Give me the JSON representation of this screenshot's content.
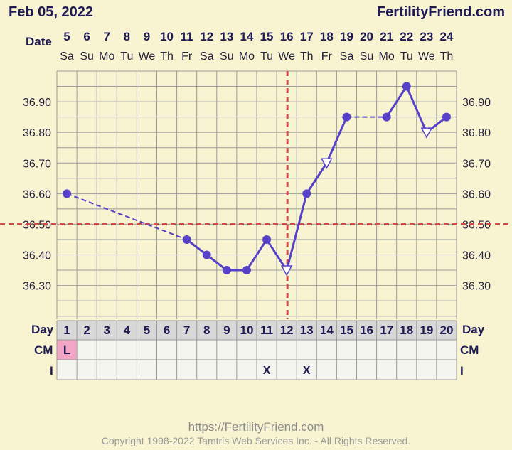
{
  "header": {
    "date_title": "Feb 05, 2022",
    "site": "FertilityFriend.com"
  },
  "footer": {
    "url": "https://FertilityFriend.com",
    "copyright": "Copyright 1998-2022 Tamtris Web Services Inc. - All Rights Reserved."
  },
  "colors": {
    "background": "#f8f4d2",
    "grid": "#9a9a9a",
    "temp_line": "#5641c8",
    "coverline": "#d04848",
    "lower_panel": "#f5f5f0",
    "day_header_row": "#d8d8d8",
    "menstruation_cell": "#f3a6c6"
  },
  "chart_data": {
    "type": "line",
    "title": "",
    "row_labels": {
      "date": "Date",
      "day": "Day",
      "cm": "CM",
      "intercourse": "I"
    },
    "cycle_days": [
      1,
      2,
      3,
      4,
      5,
      6,
      7,
      8,
      9,
      10,
      11,
      12,
      13,
      14,
      15,
      16,
      17,
      18,
      19,
      20
    ],
    "dates": [
      "5",
      "6",
      "7",
      "8",
      "9",
      "10",
      "11",
      "12",
      "13",
      "14",
      "15",
      "16",
      "17",
      "18",
      "19",
      "20",
      "21",
      "22",
      "23",
      "24"
    ],
    "weekdays": [
      "Sa",
      "Su",
      "Mo",
      "Tu",
      "We",
      "Th",
      "Fr",
      "Sa",
      "Su",
      "Mo",
      "Tu",
      "We",
      "Th",
      "Fr",
      "Sa",
      "Su",
      "Mo",
      "Tu",
      "We",
      "Th"
    ],
    "y_ticks": [
      "36.30",
      "36.40",
      "36.50",
      "36.60",
      "36.70",
      "36.80",
      "36.90"
    ],
    "ylim": [
      36.19,
      37.0
    ],
    "temperatures": [
      {
        "day": 1,
        "temp": 36.6,
        "marker": "dot"
      },
      {
        "day": 7,
        "temp": 36.45,
        "marker": "dot"
      },
      {
        "day": 8,
        "temp": 36.4,
        "marker": "dot"
      },
      {
        "day": 9,
        "temp": 36.35,
        "marker": "dot"
      },
      {
        "day": 10,
        "temp": 36.35,
        "marker": "dot"
      },
      {
        "day": 11,
        "temp": 36.45,
        "marker": "dot"
      },
      {
        "day": 12,
        "temp": 36.35,
        "marker": "open-triangle"
      },
      {
        "day": 13,
        "temp": 36.6,
        "marker": "dot"
      },
      {
        "day": 14,
        "temp": 36.7,
        "marker": "open-triangle"
      },
      {
        "day": 15,
        "temp": 36.85,
        "marker": "dot"
      },
      {
        "day": 17,
        "temp": 36.85,
        "marker": "dot"
      },
      {
        "day": 18,
        "temp": 36.95,
        "marker": "dot"
      },
      {
        "day": 19,
        "temp": 36.8,
        "marker": "open-triangle"
      },
      {
        "day": 20,
        "temp": 36.85,
        "marker": "dot"
      }
    ],
    "dashed_segments": [
      [
        1,
        7
      ],
      [
        15,
        17
      ]
    ],
    "coverline": 36.5,
    "ovulation_day": 12,
    "cm": {
      "1": "L"
    },
    "intercourse_days": [
      11,
      13
    ],
    "intercourse_mark": "X"
  }
}
